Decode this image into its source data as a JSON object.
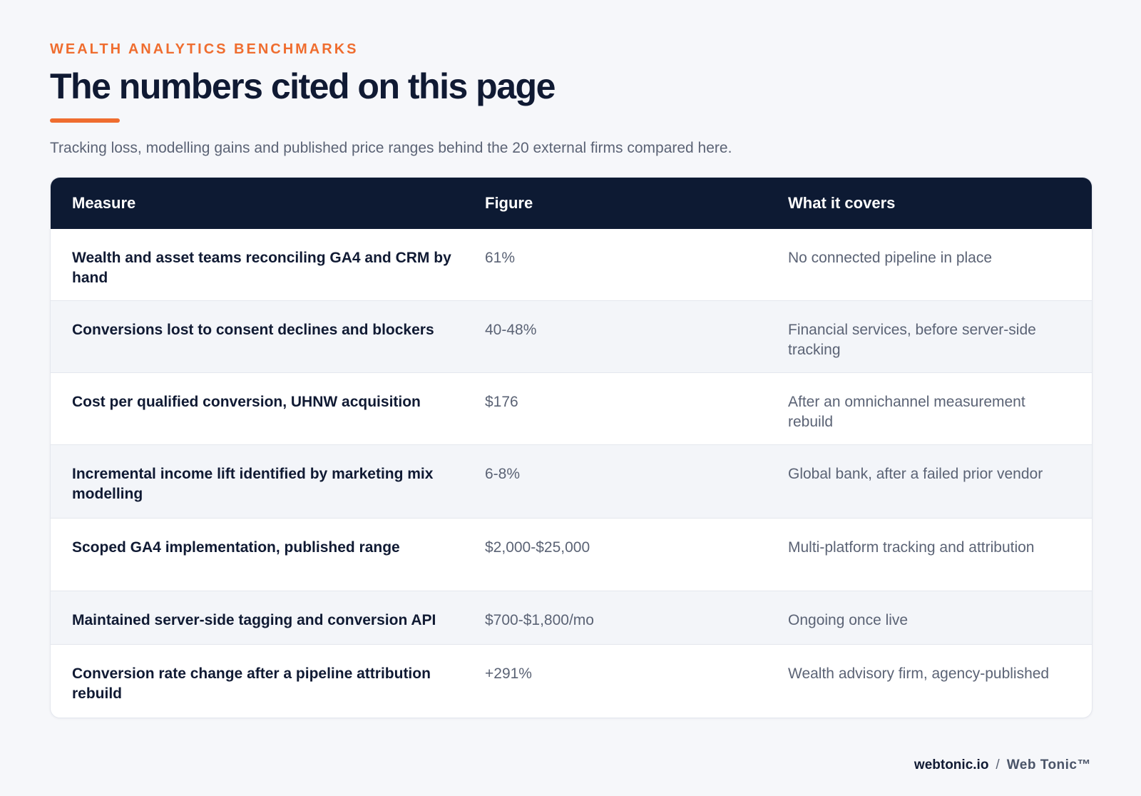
{
  "header": {
    "eyebrow": "WEALTH ANALYTICS BENCHMARKS",
    "title": "The numbers cited on this page",
    "subtitle": "Tracking loss, modelling gains and published price ranges behind the 20 external firms compared here.",
    "accent_color": "#ef6d2f"
  },
  "table": {
    "header_color": "#0d1a33",
    "columns": [
      "Measure",
      "Figure",
      "What it covers"
    ],
    "rows": [
      {
        "measure": "Wealth and asset teams reconciling GA4 and CRM by hand",
        "figure": "61%",
        "covers": "No connected pipeline in place"
      },
      {
        "measure": "Conversions lost to consent declines and blockers",
        "figure": "40-48%",
        "covers": "Financial services, before server-side tracking"
      },
      {
        "measure": "Cost per qualified conversion, UHNW acquisition",
        "figure": "$176",
        "covers": "After an omnichannel measurement rebuild"
      },
      {
        "measure": "Incremental income lift identified by marketing mix modelling",
        "figure": "6-8%",
        "covers": "Global bank, after a failed prior vendor"
      },
      {
        "measure": "Scoped GA4 implementation, published range",
        "figure": "$2,000-$25,000",
        "covers": "Multi-platform tracking and attribution"
      },
      {
        "measure": "Maintained server-side tagging and conversion API",
        "figure": "$700-$1,800/mo",
        "covers": "Ongoing once live"
      },
      {
        "measure": "Conversion rate change after a pipeline attribution rebuild",
        "figure": "+291%",
        "covers": "Wealth advisory firm, agency-published"
      }
    ]
  },
  "footer": {
    "site": "webtonic.io",
    "separator": "/",
    "brand": "Web Tonic™"
  }
}
